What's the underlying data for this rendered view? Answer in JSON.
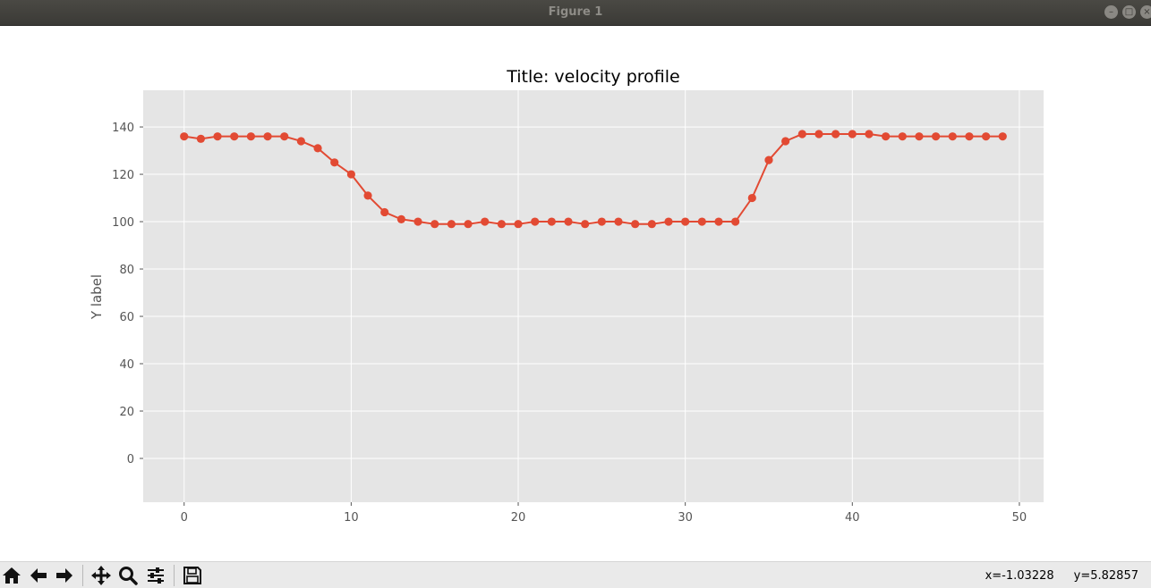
{
  "window": {
    "title": "Figure 1"
  },
  "chart_data": {
    "type": "line",
    "title": "Title: velocity profile",
    "xlabel": "",
    "ylabel": "Y label",
    "xlim": [
      -2.45,
      51.45
    ],
    "ylim": [
      -18.5,
      155.5
    ],
    "x_ticks": [
      0,
      10,
      20,
      30,
      40,
      50
    ],
    "y_ticks": [
      0,
      20,
      40,
      60,
      80,
      100,
      120,
      140
    ],
    "grid": true,
    "marker": "circle",
    "series": [
      {
        "color": "#e24a33",
        "x": [
          0,
          1,
          2,
          3,
          4,
          5,
          6,
          7,
          8,
          9,
          10,
          11,
          12,
          13,
          14,
          15,
          16,
          17,
          18,
          19,
          20,
          21,
          22,
          23,
          24,
          25,
          26,
          27,
          28,
          29,
          30,
          31,
          32,
          33,
          34,
          35,
          36,
          37,
          38,
          39,
          40,
          41,
          42,
          43,
          44,
          45,
          46,
          47,
          48,
          49
        ],
        "y": [
          136,
          135,
          136,
          136,
          136,
          136,
          136,
          134,
          131,
          125,
          120,
          111,
          104,
          101,
          100,
          99,
          99,
          99,
          100,
          99,
          99,
          100,
          100,
          100,
          99,
          100,
          100,
          99,
          99,
          100,
          100,
          100,
          100,
          100,
          110,
          126,
          134,
          137,
          137,
          137,
          137,
          137,
          136,
          136,
          136,
          136,
          136,
          136,
          136,
          136
        ]
      }
    ]
  },
  "toolbar": {
    "buttons": [
      {
        "name": "home-icon"
      },
      {
        "name": "back-arrow-icon"
      },
      {
        "name": "forward-arrow-icon"
      },
      {
        "name": "pan-icon"
      },
      {
        "name": "zoom-icon"
      },
      {
        "name": "configure-subplots-icon"
      },
      {
        "name": "save-icon"
      }
    ],
    "coord_x": "x=-1.03228",
    "coord_y": "y=5.82857"
  }
}
